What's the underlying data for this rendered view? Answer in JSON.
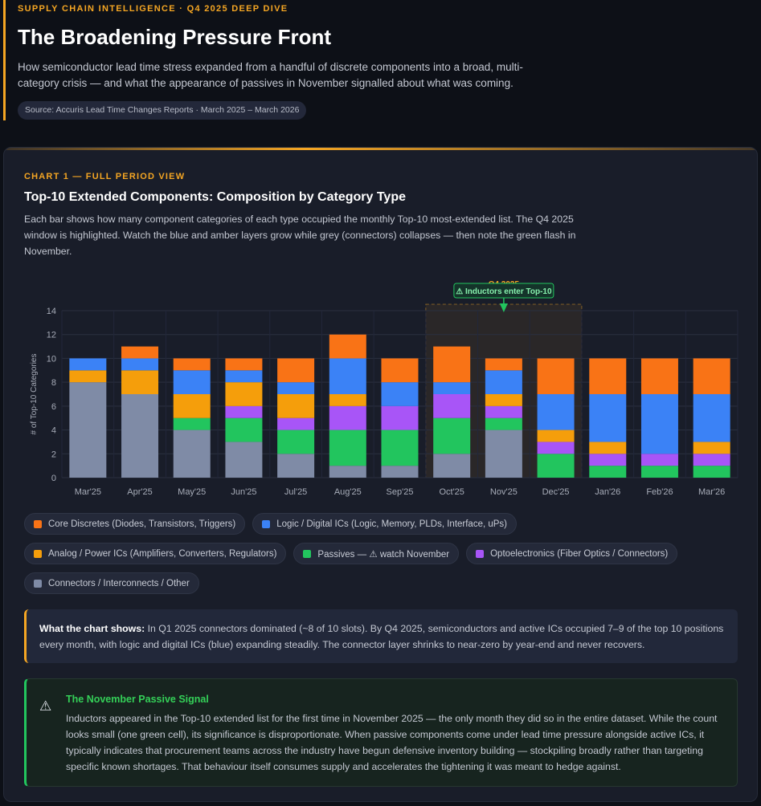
{
  "header": {
    "eyebrow": "SUPPLY CHAIN INTELLIGENCE · Q4 2025 DEEP DIVE",
    "title": "The Broadening Pressure Front",
    "intro": "How semiconductor lead time stress expanded from a handful of discrete components into a broad, multi-category crisis — and what the appearance of passives in November signalled about what was coming.",
    "source": "Source: Accuris Lead Time Changes Reports · March 2025 – March 2026"
  },
  "chart_section": {
    "label": "CHART 1 — FULL PERIOD VIEW",
    "title": "Top-10 Extended Components: Composition by Category Type",
    "description": "Each bar shows how many component categories of each type occupied the monthly Top-10 most-extended list. The Q4 2025 window is highlighted. Watch the blue and amber layers grow while grey (connectors) collapses — then note the green flash in November."
  },
  "chart_data": {
    "type": "bar",
    "stacked": true,
    "categories": [
      "Mar'25",
      "Apr'25",
      "May'25",
      "Jun'25",
      "Jul'25",
      "Aug'25",
      "Sep'25",
      "Oct'25",
      "Nov'25",
      "Dec'25",
      "Jan'26",
      "Feb'26",
      "Mar'26"
    ],
    "ylabel": "# of Top-10 Categories",
    "ylim": [
      0,
      14
    ],
    "yticks": [
      0,
      2,
      4,
      6,
      8,
      10,
      12,
      14
    ],
    "grid": true,
    "series": [
      {
        "name": "Connectors / Interconnects / Other",
        "color": "#7f8ba6",
        "values": [
          8,
          7,
          4,
          3,
          2,
          1,
          1,
          2,
          4,
          0,
          0,
          0,
          0
        ]
      },
      {
        "name": "Passives — ⚠ watch November",
        "color": "#22c55e",
        "values": [
          0,
          0,
          1,
          2,
          2,
          3,
          3,
          3,
          1,
          2,
          1,
          1,
          1
        ]
      },
      {
        "name": "Optoelectronics (Fiber Optics / Connectors)",
        "color": "#a855f7",
        "values": [
          0,
          0,
          0,
          1,
          1,
          2,
          2,
          2,
          1,
          1,
          1,
          1,
          1
        ]
      },
      {
        "name": "Analog / Power ICs (Amplifiers, Converters, Regulators)",
        "color": "#f59e0b",
        "values": [
          1,
          2,
          2,
          2,
          2,
          1,
          0,
          0,
          1,
          1,
          1,
          0,
          1
        ]
      },
      {
        "name": "Logic / Digital ICs (Logic, Memory, PLDs, Interface, uPs)",
        "color": "#3b82f6",
        "values": [
          1,
          1,
          2,
          1,
          1,
          3,
          2,
          1,
          2,
          3,
          4,
          5,
          4
        ]
      },
      {
        "name": "Core Discretes (Diodes, Transistors, Triggers)",
        "color": "#f97316",
        "values": [
          0,
          1,
          1,
          1,
          2,
          2,
          2,
          3,
          1,
          3,
          3,
          3,
          3
        ]
      }
    ],
    "highlight": {
      "label": "Q4 2025",
      "from": "Oct'25",
      "to": "Dec'25"
    },
    "annotation": {
      "text": "⚠ Inductors enter Top-10",
      "month": "Nov'25"
    }
  },
  "legend": [
    {
      "label": "Core Discretes (Diodes, Transistors, Triggers)",
      "color": "#f97316"
    },
    {
      "label": "Logic / Digital ICs (Logic, Memory, PLDs, Interface, uPs)",
      "color": "#3b82f6"
    },
    {
      "label": "Analog / Power ICs (Amplifiers, Converters, Regulators)",
      "color": "#f59e0b"
    },
    {
      "label": "Passives — ⚠ watch November",
      "color": "#22c55e"
    },
    {
      "label": "Optoelectronics (Fiber Optics / Connectors)",
      "color": "#a855f7"
    },
    {
      "label": "Connectors / Interconnects / Other",
      "color": "#7f8ba6"
    }
  ],
  "callout": {
    "lead": "What the chart shows:",
    "text": " In Q1 2025 connectors dominated (~8 of 10 slots). By Q4 2025, semiconductors and active ICs occupied 7–9 of the top 10 positions every month, with logic and digital ICs (blue) expanding steadily. The connector layer shrinks to near-zero by year-end and never recovers."
  },
  "signal": {
    "icon": "warning-icon",
    "title": "The November Passive Signal",
    "text": "Inductors appeared in the Top-10 extended list for the first time in November 2025 — the only month they did so in the entire dataset. While the count looks small (one green cell), its significance is disproportionate. When passive components come under lead time pressure alongside active ICs, it typically indicates that procurement teams across the industry have begun defensive inventory building — stockpiling broadly rather than targeting specific known shortages. That behaviour itself consumes supply and accelerates the tightening it was meant to hedge against."
  }
}
